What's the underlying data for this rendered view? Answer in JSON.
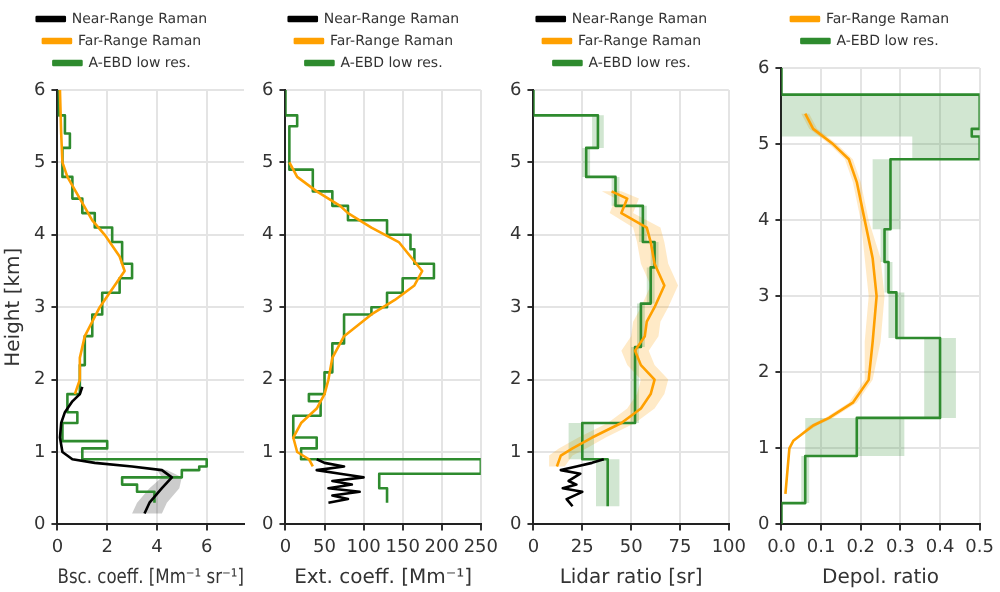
{
  "chart_data": [
    {
      "type": "line",
      "orientation": "horizontal",
      "xlabel": "Bsc. coeff. [Mm⁻¹ sr⁻¹]",
      "ylabel": "Height [km]",
      "xlim": [
        0,
        7.5
      ],
      "xticks": [
        0,
        2,
        4,
        6
      ],
      "ylim": [
        0,
        6
      ],
      "yticks": [
        0,
        1,
        2,
        3,
        4,
        5,
        6
      ],
      "grid": true,
      "legend": "top",
      "series": [
        {
          "name": "Near-Range Raman",
          "color": "#000000",
          "x": [
            0.15,
            0.3,
            0.5,
            0.65,
            0.75,
            0.8,
            0.85,
            0.9,
            1.0,
            1.2,
            1.4,
            1.55,
            1.7,
            1.8,
            1.9
          ],
          "values": [
            3.5,
            3.7,
            4.2,
            4.6,
            4.2,
            3.0,
            1.5,
            0.6,
            0.2,
            0.1,
            0.15,
            0.3,
            0.6,
            0.9,
            1.0
          ],
          "lower": [
            3.0,
            3.2,
            3.7,
            4.2,
            4.0,
            2.9,
            1.45,
            0.55,
            0.2,
            0.1,
            0.15,
            0.3,
            0.6,
            0.9,
            1.0
          ],
          "upper": [
            4.2,
            4.4,
            4.9,
            5.0,
            4.4,
            3.1,
            1.55,
            0.65,
            0.2,
            0.1,
            0.15,
            0.3,
            0.6,
            0.9,
            1.0
          ]
        },
        {
          "name": "Far-Range Raman",
          "color": "#ffa000",
          "x": [
            1.8,
            2.0,
            2.3,
            2.6,
            3.0,
            3.3,
            3.5,
            3.7,
            4.0,
            4.2,
            4.5,
            4.8,
            5.0,
            5.4,
            6.0
          ],
          "values": [
            0.7,
            0.9,
            0.9,
            1.1,
            1.7,
            2.3,
            2.7,
            2.5,
            1.9,
            1.4,
            0.9,
            0.4,
            0.2,
            0.15,
            0.1
          ]
        },
        {
          "name": "A-EBD low res.",
          "color": "#2e8b2e",
          "x": [
            0.3,
            0.45,
            0.45,
            0.55,
            0.55,
            0.65,
            0.65,
            0.75,
            0.75,
            0.8,
            0.8,
            0.9,
            0.9,
            1.05,
            1.05,
            1.15,
            1.15,
            1.4,
            1.4,
            1.55,
            1.55,
            1.8,
            1.8,
            2.2,
            2.2,
            2.6,
            2.6,
            2.9,
            2.9,
            3.2,
            3.2,
            3.4,
            3.4,
            3.6,
            3.6,
            3.9,
            3.9,
            4.1,
            4.1,
            4.3,
            4.3,
            4.5,
            4.5,
            4.8,
            4.8,
            5.2,
            5.2,
            5.4,
            5.4,
            5.65,
            5.65,
            6.0
          ],
          "values": [
            3.9,
            3.9,
            3.2,
            3.2,
            2.6,
            2.6,
            5.0,
            5.0,
            5.7,
            5.7,
            6.0,
            6.0,
            1.0,
            1.0,
            2.0,
            2.0,
            0.2,
            0.2,
            0.8,
            0.8,
            0.4,
            0.4,
            0.9,
            0.9,
            1.1,
            1.1,
            1.4,
            1.4,
            1.8,
            1.8,
            2.5,
            2.5,
            3.0,
            3.0,
            2.6,
            2.6,
            2.2,
            2.2,
            1.5,
            1.5,
            1.0,
            1.0,
            0.6,
            0.6,
            0.2,
            0.2,
            0.5,
            0.5,
            0.3,
            0.3,
            0.05,
            0.05
          ]
        }
      ]
    },
    {
      "type": "line",
      "orientation": "horizontal",
      "xlabel": "Ext. coeff. [Mm⁻¹]",
      "xlim": [
        0,
        250
      ],
      "xticks": [
        0,
        50,
        100,
        150,
        200,
        250
      ],
      "ylim": [
        0,
        6
      ],
      "yticks": [
        0,
        1,
        2,
        3,
        4,
        5,
        6
      ],
      "grid": true,
      "legend": "top",
      "series": [
        {
          "name": "Near-Range Raman",
          "color": "#000000",
          "x": [
            0.3,
            0.35,
            0.4,
            0.45,
            0.5,
            0.55,
            0.6,
            0.65,
            0.7,
            0.75,
            0.8,
            0.85,
            0.9
          ],
          "values": [
            55,
            80,
            60,
            95,
            55,
            85,
            60,
            100,
            70,
            40,
            75,
            50,
            40
          ]
        },
        {
          "name": "Far-Range Raman",
          "color": "#ffa000",
          "x": [
            0.8,
            0.9,
            1.0,
            1.2,
            1.4,
            1.6,
            1.8,
            2.0,
            2.3,
            2.6,
            2.9,
            3.1,
            3.3,
            3.5,
            3.7,
            3.9,
            4.1,
            4.3,
            4.4,
            4.6,
            4.8,
            5.0
          ],
          "values": [
            35,
            30,
            15,
            10,
            20,
            40,
            50,
            55,
            60,
            75,
            110,
            140,
            165,
            175,
            160,
            145,
            110,
            80,
            70,
            40,
            15,
            5
          ]
        },
        {
          "name": "A-EBD low res.",
          "color": "#2e8b2e",
          "x": [
            0.3,
            0.5,
            0.5,
            0.7,
            0.7,
            0.9,
            0.9,
            1.05,
            1.05,
            1.2,
            1.2,
            1.5,
            1.5,
            1.7,
            1.7,
            1.8,
            1.8,
            2.1,
            2.1,
            2.5,
            2.5,
            2.9,
            2.9,
            3.0,
            3.0,
            3.2,
            3.2,
            3.4,
            3.4,
            3.6,
            3.6,
            3.8,
            3.8,
            4.0,
            4.0,
            4.2,
            4.2,
            4.4,
            4.4,
            4.6,
            4.6,
            4.9,
            4.9,
            5.5,
            5.5,
            5.65,
            5.65,
            6.0
          ],
          "values": [
            130,
            130,
            120,
            120,
            250,
            250,
            20,
            20,
            40,
            40,
            10,
            10,
            45,
            45,
            30,
            30,
            50,
            50,
            60,
            60,
            75,
            75,
            110,
            110,
            130,
            130,
            150,
            150,
            190,
            190,
            165,
            165,
            160,
            160,
            130,
            130,
            80,
            80,
            60,
            60,
            35,
            35,
            5,
            5,
            15,
            15,
            0,
            0
          ]
        }
      ]
    },
    {
      "type": "line",
      "orientation": "horizontal",
      "xlabel": "Lidar ratio [sr]",
      "xlim": [
        0,
        100
      ],
      "xticks": [
        0,
        25,
        50,
        75,
        100
      ],
      "ylim": [
        0,
        6
      ],
      "yticks": [
        0,
        1,
        2,
        3,
        4,
        5,
        6
      ],
      "grid": true,
      "legend": "top",
      "series": [
        {
          "name": "Near-Range Raman",
          "color": "#000000",
          "x": [
            0.25,
            0.35,
            0.45,
            0.5,
            0.55,
            0.6,
            0.7,
            0.75,
            0.8,
            0.85,
            0.9
          ],
          "values": [
            20,
            17,
            25,
            15,
            22,
            18,
            24,
            14,
            22,
            30,
            36
          ]
        },
        {
          "name": "Far-Range Raman",
          "color": "#ffa000",
          "x": [
            0.8,
            0.95,
            1.05,
            1.2,
            1.4,
            1.6,
            1.8,
            2.0,
            2.2,
            2.4,
            2.6,
            2.8,
            3.0,
            3.3,
            3.6,
            3.9,
            4.1,
            4.3,
            4.5,
            4.6
          ],
          "values": [
            12,
            14,
            20,
            30,
            45,
            55,
            60,
            62,
            55,
            52,
            57,
            58,
            62,
            67,
            62,
            60,
            58,
            45,
            48,
            40
          ],
          "lower": [
            8,
            8,
            13,
            23,
            38,
            48,
            53,
            55,
            48,
            45,
            50,
            51,
            55,
            60,
            55,
            53,
            51,
            39,
            42,
            35
          ],
          "upper": [
            16,
            20,
            27,
            37,
            52,
            62,
            67,
            69,
            62,
            59,
            64,
            65,
            69,
            74,
            69,
            67,
            65,
            51,
            54,
            45
          ]
        },
        {
          "name": "A-EBD low res.",
          "color": "#2e8b2e",
          "x": [
            0.25,
            0.9,
            0.9,
            1.4,
            1.4,
            2.45,
            2.45,
            3.05,
            3.05,
            3.55,
            3.55,
            3.9,
            3.9,
            4.4,
            4.4,
            4.8,
            4.8,
            5.2,
            5.2,
            5.65,
            5.65,
            6.0
          ],
          "values": [
            38,
            38,
            25,
            25,
            52,
            52,
            55,
            55,
            60,
            60,
            62,
            62,
            56,
            56,
            42,
            42,
            27,
            27,
            33,
            33,
            0,
            0
          ],
          "lower": [
            32,
            32,
            18,
            18,
            50,
            50,
            53,
            53,
            58,
            58,
            60,
            60,
            54,
            54,
            40,
            40,
            25,
            25,
            30,
            30,
            0,
            0
          ],
          "upper": [
            44,
            44,
            31,
            31,
            54,
            54,
            57,
            57,
            62,
            62,
            64,
            64,
            58,
            58,
            44,
            44,
            29,
            29,
            36,
            36,
            0,
            0
          ]
        }
      ]
    },
    {
      "type": "line",
      "orientation": "horizontal",
      "xlabel": "Depol. ratio",
      "xlim": [
        0,
        0.5
      ],
      "xticks": [
        {
          "value": 0,
          "label": "0.0"
        },
        0.1,
        0.2,
        0.3,
        0.4,
        0.5
      ],
      "ylim": [
        0,
        6
      ],
      "yticks": [
        0,
        1,
        2,
        3,
        4,
        5,
        6
      ],
      "grid": true,
      "legend": "top",
      "series": [
        {
          "name": "Far-Range Raman",
          "color": "#ffa000",
          "x": [
            0.4,
            1.0,
            1.1,
            1.3,
            1.4,
            1.6,
            1.9,
            2.4,
            3.0,
            3.5,
            4.0,
            4.5,
            4.8,
            5.0,
            5.2,
            5.4
          ],
          "values": [
            0.01,
            0.02,
            0.03,
            0.08,
            0.12,
            0.18,
            0.22,
            0.23,
            0.24,
            0.23,
            0.21,
            0.19,
            0.17,
            0.13,
            0.08,
            0.06
          ],
          "lower": [
            0.01,
            0.02,
            0.03,
            0.07,
            0.11,
            0.17,
            0.21,
            0.21,
            0.22,
            0.21,
            0.2,
            0.18,
            0.16,
            0.12,
            0.07,
            0.05
          ],
          "upper": [
            0.01,
            0.02,
            0.03,
            0.09,
            0.13,
            0.19,
            0.23,
            0.25,
            0.26,
            0.25,
            0.22,
            0.2,
            0.18,
            0.14,
            0.09,
            0.07
          ]
        },
        {
          "name": "A-EBD low res.",
          "color": "#2e8b2e",
          "x": [
            0,
            0.28,
            0.28,
            0.9,
            0.9,
            1.4,
            1.4,
            2.45,
            2.45,
            3.05,
            3.05,
            3.45,
            3.45,
            3.88,
            3.88,
            4.8,
            4.8,
            5.1,
            5.1,
            5.2,
            5.2,
            5.65,
            5.65,
            6.0
          ],
          "values": [
            0,
            0,
            0.06,
            0.06,
            0.19,
            0.19,
            0.4,
            0.4,
            0.29,
            0.29,
            0.27,
            0.27,
            0.26,
            0.26,
            0.275,
            0.275,
            0.5,
            0.5,
            0.48,
            0.48,
            0.5,
            0.5,
            0,
            0
          ],
          "lower": [
            0,
            0,
            0.05,
            0.05,
            0.06,
            0.06,
            0.36,
            0.36,
            0.27,
            0.27,
            0.26,
            0.26,
            0.25,
            0.25,
            0.23,
            0.23,
            0.33,
            0.33,
            0,
            0,
            0,
            0,
            0,
            0
          ],
          "upper": [
            0,
            0,
            0.07,
            0.07,
            0.31,
            0.31,
            0.44,
            0.44,
            0.31,
            0.31,
            0.28,
            0.28,
            0.27,
            0.27,
            0.3,
            0.3,
            0.5,
            0.5,
            0.5,
            0.5,
            0.5,
            0.5,
            0,
            0
          ]
        }
      ]
    }
  ]
}
